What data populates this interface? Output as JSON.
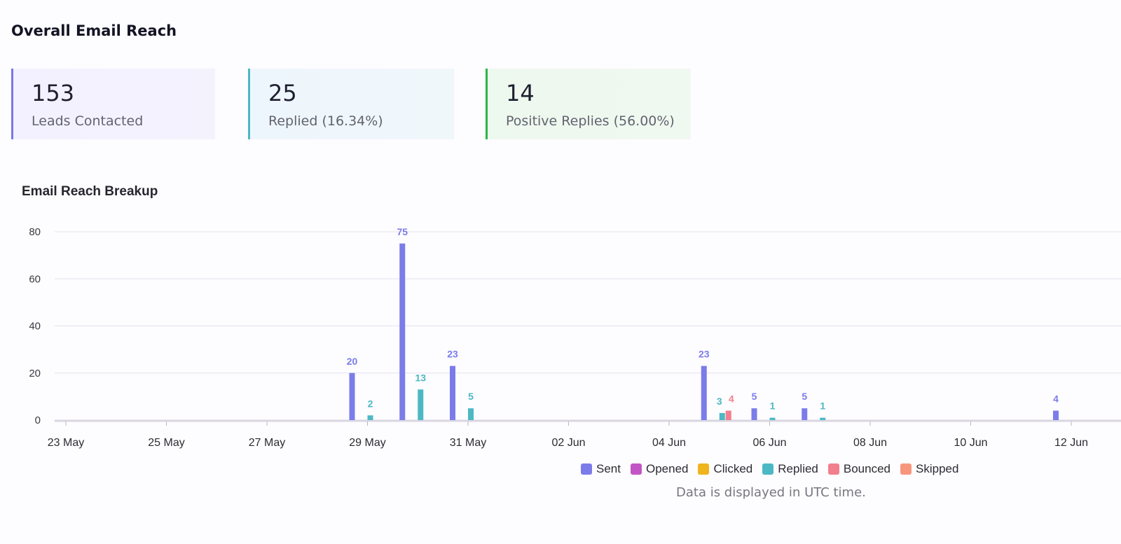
{
  "section_title": "Overall Email Reach",
  "cards": [
    {
      "value": "153",
      "label": "Leads Contacted",
      "accent": "#7b78e6"
    },
    {
      "value": "25",
      "label": "Replied (16.34%)",
      "accent": "#4cb8c4"
    },
    {
      "value": "14",
      "label": "Positive Replies (56.00%)",
      "accent": "#2eb34a"
    }
  ],
  "footnote": "Data is displayed in UTC time.",
  "chart_data": {
    "type": "bar",
    "title": "Email Reach Breakup",
    "xlabel": "",
    "ylabel": "",
    "ylim": [
      0,
      80
    ],
    "yticks": [
      0,
      20,
      40,
      60,
      80
    ],
    "grid": true,
    "x_range": [
      "2025-05-23",
      "2025-06-13"
    ],
    "x_ticks": [
      {
        "date": "2025-05-23",
        "label": "23 May"
      },
      {
        "date": "2025-05-25",
        "label": "25 May"
      },
      {
        "date": "2025-05-27",
        "label": "27 May"
      },
      {
        "date": "2025-05-29",
        "label": "29 May"
      },
      {
        "date": "2025-05-31",
        "label": "31 May"
      },
      {
        "date": "2025-06-02",
        "label": "02 Jun"
      },
      {
        "date": "2025-06-04",
        "label": "04 Jun"
      },
      {
        "date": "2025-06-06",
        "label": "06 Jun"
      },
      {
        "date": "2025-06-08",
        "label": "08 Jun"
      },
      {
        "date": "2025-06-10",
        "label": "10 Jun"
      },
      {
        "date": "2025-06-12",
        "label": "12 Jun"
      }
    ],
    "legend_position": "bottom",
    "series": [
      {
        "name": "Sent",
        "color": "#7b7ce9",
        "points": [
          {
            "date": "2025-05-29",
            "value": 20
          },
          {
            "date": "2025-05-30",
            "value": 75
          },
          {
            "date": "2025-05-31",
            "value": 23
          },
          {
            "date": "2025-06-05",
            "value": 23
          },
          {
            "date": "2025-06-06",
            "value": 5
          },
          {
            "date": "2025-06-07",
            "value": 5
          },
          {
            "date": "2025-06-12",
            "value": 4
          }
        ]
      },
      {
        "name": "Opened",
        "color": "#c256c4",
        "points": []
      },
      {
        "name": "Clicked",
        "color": "#f0b41c",
        "points": []
      },
      {
        "name": "Replied",
        "color": "#4cb8c4",
        "points": [
          {
            "date": "2025-05-29",
            "value": 2
          },
          {
            "date": "2025-05-30",
            "value": 13
          },
          {
            "date": "2025-05-31",
            "value": 5
          },
          {
            "date": "2025-06-05",
            "value": 3
          },
          {
            "date": "2025-06-06",
            "value": 1
          },
          {
            "date": "2025-06-07",
            "value": 1
          }
        ]
      },
      {
        "name": "Bounced",
        "color": "#f27f8e",
        "points": [
          {
            "date": "2025-06-05",
            "value": 4
          }
        ]
      },
      {
        "name": "Skipped",
        "color": "#f8967d",
        "points": []
      }
    ]
  }
}
